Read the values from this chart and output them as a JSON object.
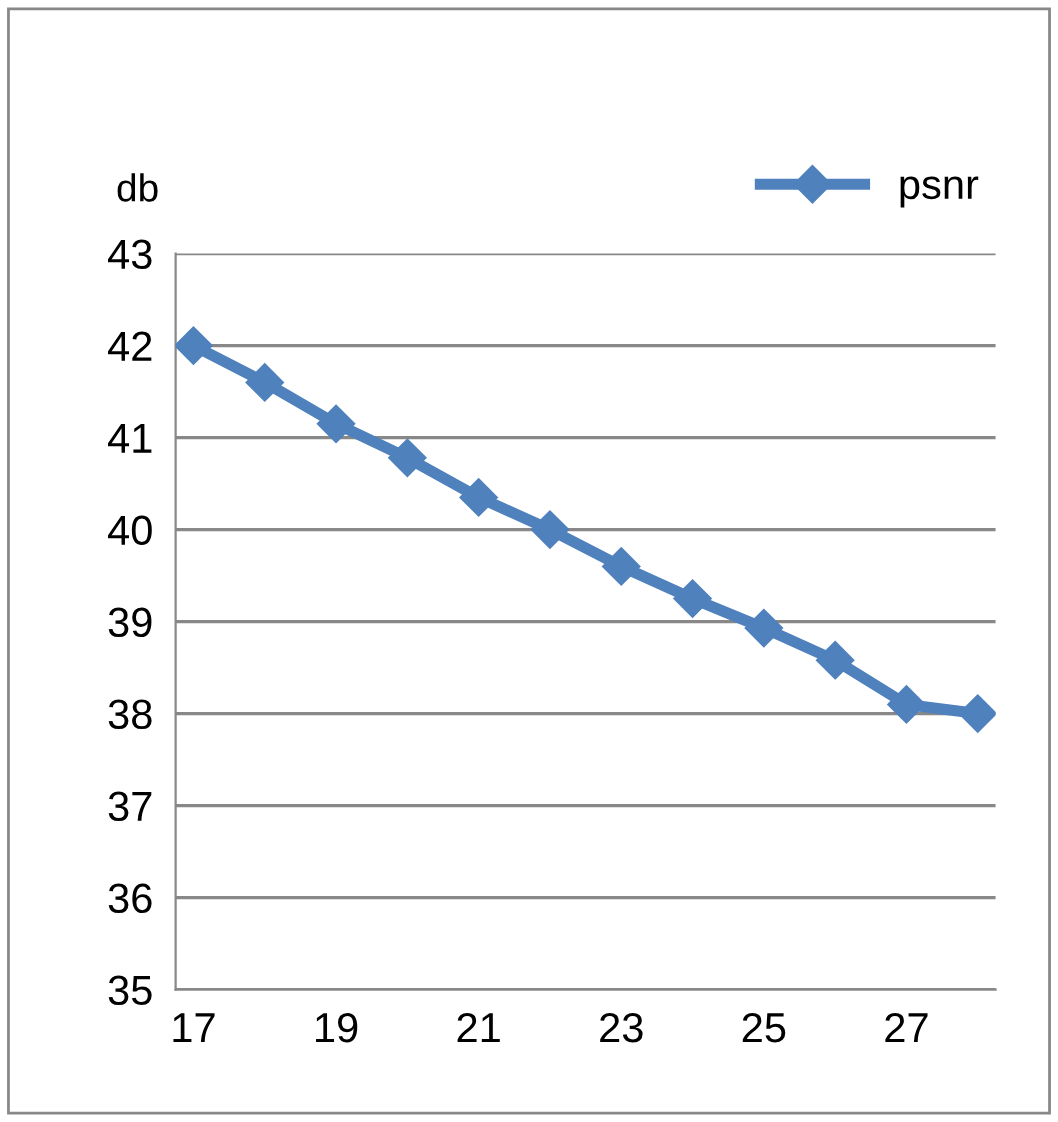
{
  "chart_data": {
    "type": "line",
    "ylabel": "db",
    "categories": [
      "17",
      null,
      "19",
      null,
      "21",
      null,
      "23",
      null,
      "25",
      null,
      "27",
      null
    ],
    "series": [
      {
        "name": "psnr",
        "color": "#4f81bd",
        "values": [
          42.0,
          41.6,
          41.15,
          40.78,
          40.35,
          40.0,
          39.6,
          39.25,
          38.93,
          38.58,
          38.1,
          38.0
        ]
      }
    ],
    "ylim": [
      35,
      43
    ],
    "yticks": [
      35,
      36,
      37,
      38,
      39,
      40,
      41,
      42,
      43
    ],
    "grid": "y",
    "legend": "top right",
    "marker": "diamond",
    "line_style": "solid"
  }
}
